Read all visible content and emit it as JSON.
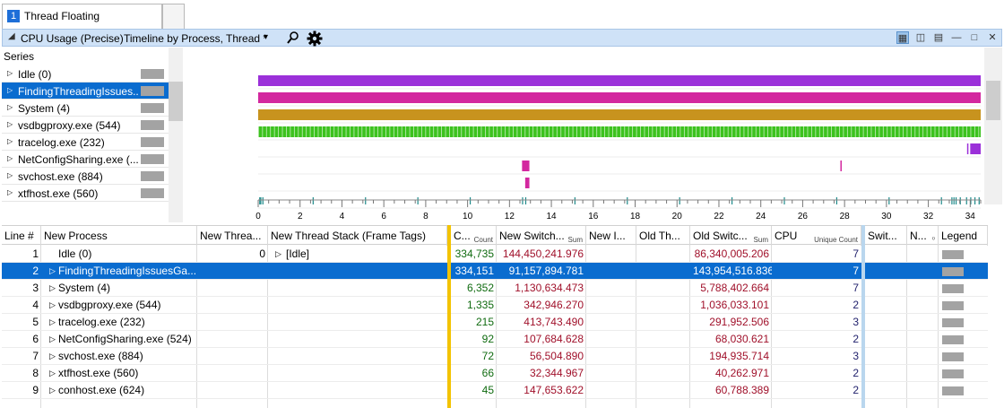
{
  "tab": {
    "number": "1",
    "title": "Thread Floating"
  },
  "graph_header": {
    "title": "CPU Usage (Precise)",
    "preset": "Timeline by Process, Thread *",
    "dropdown_glyph": "▾",
    "icons": [
      "search-icon",
      "gear-icon",
      "table-graph-view-icon",
      "graph-only-icon",
      "table-only-icon",
      "minimize-icon",
      "maximize-icon",
      "close-icon"
    ]
  },
  "series": {
    "header": "Series",
    "items": [
      {
        "label": "Idle (0)",
        "selected": false
      },
      {
        "label": "FindingThreadingIssues...",
        "selected": true
      },
      {
        "label": "System (4)",
        "selected": false
      },
      {
        "label": "vsdbgproxy.exe (544)",
        "selected": false
      },
      {
        "label": "tracelog.exe (232)",
        "selected": false
      },
      {
        "label": "NetConfigSharing.exe (...",
        "selected": false
      },
      {
        "label": "svchost.exe (884)",
        "selected": false
      },
      {
        "label": "xtfhost.exe (560)",
        "selected": false
      }
    ]
  },
  "chart_data": {
    "type": "timeline",
    "x_ticks": [
      "0",
      "2",
      "4",
      "6",
      "8",
      "10",
      "12",
      "14",
      "16",
      "18",
      "20",
      "22",
      "24",
      "26",
      "28",
      "30",
      "32",
      "34"
    ],
    "xlim": [
      0,
      34.5
    ],
    "lanes": [
      {
        "name": "Idle (0)",
        "color": "#9b30d9",
        "segments": [
          [
            0,
            34.5
          ]
        ]
      },
      {
        "name": "FindingThreadingIssues...",
        "color": "#d3289f",
        "segments": [
          [
            0,
            34.5
          ]
        ]
      },
      {
        "name": "System (4)",
        "color": "#c8931e",
        "segments": [
          [
            0,
            34.5
          ]
        ]
      },
      {
        "name": "vsdbgproxy.exe (544)",
        "color": "#3cc21e",
        "style": "dense",
        "segments": [
          [
            0,
            34.5
          ]
        ]
      },
      {
        "name": "tracelog.exe (232)",
        "color": "#9b30d9",
        "segments": [
          [
            34.0,
            34.5
          ],
          [
            33.85,
            33.9
          ]
        ]
      },
      {
        "name": "NetConfigSharing.exe (...",
        "color": "#d3289f",
        "segments": [
          [
            12.6,
            12.95
          ],
          [
            27.8,
            27.85
          ]
        ]
      },
      {
        "name": "svchost.exe (884)",
        "color": "#d3289f",
        "segments": [
          [
            12.75,
            12.95
          ]
        ]
      },
      {
        "name": "xtfhost.exe (560)",
        "color": "#1e8a8a",
        "style": "ticks",
        "points": [
          0.05,
          0.1,
          0.2,
          2.6,
          5.1,
          7.6,
          10.1,
          12.6,
          12.75,
          15.1,
          17.6,
          20.1,
          22.6,
          25.1,
          27.6,
          30.1,
          32.6,
          33.1,
          33.2,
          33.3,
          33.5,
          33.8,
          34.0,
          34.2,
          34.4
        ]
      }
    ]
  },
  "table": {
    "columns": [
      {
        "label": "Line #",
        "sub": ""
      },
      {
        "label": "New Process",
        "sub": ""
      },
      {
        "label": "New Threa...",
        "sub": ""
      },
      {
        "label": "New Thread Stack (Frame Tags)",
        "sub": ""
      },
      {
        "label": "C...",
        "sub": "Count"
      },
      {
        "label": "New Switch...",
        "sub": "Sum"
      },
      {
        "label": "New I...",
        "sub": ""
      },
      {
        "label": "Old Th...",
        "sub": ""
      },
      {
        "label": "Old Switc...",
        "sub": "Sum"
      },
      {
        "label": "CPU",
        "sub": "Unique Count"
      },
      {
        "label": "Swit...",
        "sub": ""
      },
      {
        "label": "N...",
        "sub": "⁰"
      },
      {
        "label": "Legend",
        "sub": ""
      }
    ],
    "rows": [
      {
        "line": "1",
        "process": "Idle (0)",
        "expander": "",
        "thread": "0",
        "stack": "[Idle]",
        "stack_expander": "▷",
        "count": "334,735",
        "new_switch": "144,450,241.976",
        "old_switch": "86,340,005.206",
        "cpu": "7",
        "selected": false
      },
      {
        "line": "2",
        "process": "FindingThreadingIssuesGa...",
        "expander": "▷",
        "thread": "",
        "stack": "",
        "stack_expander": "",
        "count": "334,151",
        "new_switch": "91,157,894.781",
        "old_switch": "143,954,516.836",
        "cpu": "7",
        "selected": true
      },
      {
        "line": "3",
        "process": "System (4)",
        "expander": "▷",
        "thread": "",
        "stack": "",
        "stack_expander": "",
        "count": "6,352",
        "new_switch": "1,130,634.473",
        "old_switch": "5,788,402.664",
        "cpu": "7",
        "selected": false
      },
      {
        "line": "4",
        "process": "vsdbgproxy.exe (544)",
        "expander": "▷",
        "thread": "",
        "stack": "",
        "stack_expander": "",
        "count": "1,335",
        "new_switch": "342,946.270",
        "old_switch": "1,036,033.101",
        "cpu": "2",
        "selected": false
      },
      {
        "line": "5",
        "process": "tracelog.exe (232)",
        "expander": "▷",
        "thread": "",
        "stack": "",
        "stack_expander": "",
        "count": "215",
        "new_switch": "413,743.490",
        "old_switch": "291,952.506",
        "cpu": "3",
        "selected": false
      },
      {
        "line": "6",
        "process": "NetConfigSharing.exe (524)",
        "expander": "▷",
        "thread": "",
        "stack": "",
        "stack_expander": "",
        "count": "92",
        "new_switch": "107,684.628",
        "old_switch": "68,030.621",
        "cpu": "2",
        "selected": false
      },
      {
        "line": "7",
        "process": "svchost.exe (884)",
        "expander": "▷",
        "thread": "",
        "stack": "",
        "stack_expander": "",
        "count": "72",
        "new_switch": "56,504.890",
        "old_switch": "194,935.714",
        "cpu": "3",
        "selected": false
      },
      {
        "line": "8",
        "process": "xtfhost.exe (560)",
        "expander": "▷",
        "thread": "",
        "stack": "",
        "stack_expander": "",
        "count": "66",
        "new_switch": "32,344.967",
        "old_switch": "40,262.971",
        "cpu": "2",
        "selected": false
      },
      {
        "line": "9",
        "process": "conhost.exe (624)",
        "expander": "▷",
        "thread": "",
        "stack": "",
        "stack_expander": "",
        "count": "45",
        "new_switch": "147,653.622",
        "old_switch": "60,788.389",
        "cpu": "2",
        "selected": false
      }
    ]
  }
}
